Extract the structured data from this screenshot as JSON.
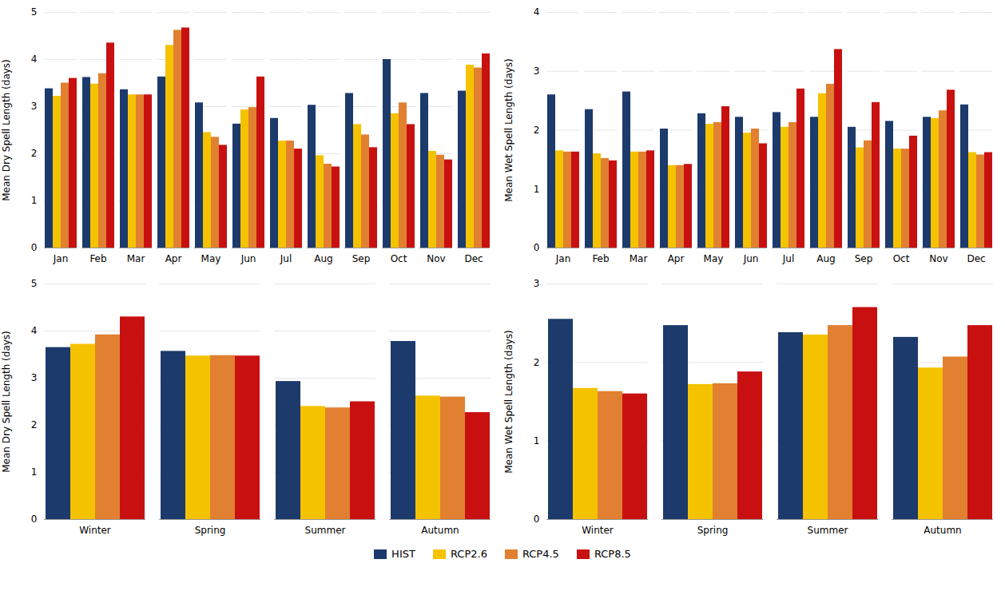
{
  "chart_data": [
    {
      "type": "bar",
      "ylabel": "Mean Dry Spell Length (days)",
      "categories": [
        "Jan",
        "Feb",
        "Mar",
        "Apr",
        "May",
        "Jun",
        "Jul",
        "Aug",
        "Sep",
        "Oct",
        "Nov",
        "Dec"
      ],
      "series": [
        {
          "name": "HIST",
          "color": "#1c3a6b",
          "values": [
            3.38,
            3.62,
            3.36,
            3.63,
            3.08,
            2.63,
            2.75,
            3.03,
            3.28,
            4.0,
            3.28,
            3.33
          ]
        },
        {
          "name": "RCP2.6",
          "color": "#f5c200",
          "values": [
            3.22,
            3.48,
            3.25,
            4.3,
            2.45,
            2.93,
            2.27,
            1.96,
            2.62,
            2.85,
            2.05,
            3.88
          ]
        },
        {
          "name": "RCP4.5",
          "color": "#e08030",
          "values": [
            3.5,
            3.7,
            3.25,
            4.62,
            2.35,
            2.98,
            2.27,
            1.78,
            2.4,
            3.08,
            1.97,
            3.82
          ]
        },
        {
          "name": "RCP8.5",
          "color": "#c81010",
          "values": [
            3.6,
            4.35,
            3.25,
            4.67,
            2.18,
            3.63,
            2.1,
            1.72,
            2.13,
            2.62,
            1.87,
            4.12
          ]
        }
      ],
      "ylim": [
        0,
        5
      ],
      "yticks": [
        0,
        1,
        2,
        3,
        4,
        5
      ],
      "grid": true,
      "legend": "bottom"
    },
    {
      "type": "bar",
      "ylabel": "Mean Wet Spell Length (days)",
      "categories": [
        "Jan",
        "Feb",
        "Mar",
        "Apr",
        "May",
        "Jun",
        "Jul",
        "Aug",
        "Sep",
        "Oct",
        "Nov",
        "Dec"
      ],
      "series": [
        {
          "name": "HIST",
          "color": "#1c3a6b",
          "values": [
            2.6,
            2.35,
            2.65,
            2.02,
            2.28,
            2.22,
            2.3,
            2.22,
            2.05,
            2.15,
            2.22,
            2.43
          ]
        },
        {
          "name": "RCP2.6",
          "color": "#f5c200",
          "values": [
            1.65,
            1.6,
            1.63,
            1.4,
            2.1,
            1.95,
            2.05,
            2.62,
            1.7,
            1.68,
            2.2,
            1.62
          ]
        },
        {
          "name": "RCP4.5",
          "color": "#e08030",
          "values": [
            1.63,
            1.52,
            1.63,
            1.4,
            2.13,
            2.02,
            2.13,
            2.78,
            1.82,
            1.68,
            2.33,
            1.58
          ]
        },
        {
          "name": "RCP8.5",
          "color": "#c81010",
          "values": [
            1.63,
            1.48,
            1.65,
            1.42,
            2.4,
            1.77,
            2.7,
            3.37,
            2.47,
            1.9,
            2.68,
            1.62
          ]
        }
      ],
      "ylim": [
        0,
        4
      ],
      "yticks": [
        0,
        1,
        2,
        3,
        4
      ],
      "grid": true,
      "legend": "bottom"
    },
    {
      "type": "bar",
      "ylabel": "Mean Dry Spell Length (days)",
      "categories": [
        "Winter",
        "Spring",
        "Summer",
        "Autumn"
      ],
      "series": [
        {
          "name": "HIST",
          "color": "#1c3a6b",
          "values": [
            3.65,
            3.57,
            2.93,
            3.78
          ]
        },
        {
          "name": "RCP2.6",
          "color": "#f5c200",
          "values": [
            3.72,
            3.47,
            2.4,
            2.62
          ]
        },
        {
          "name": "RCP4.5",
          "color": "#e08030",
          "values": [
            3.92,
            3.48,
            2.37,
            2.6
          ]
        },
        {
          "name": "RCP8.5",
          "color": "#c81010",
          "values": [
            4.3,
            3.47,
            2.5,
            2.27
          ]
        }
      ],
      "ylim": [
        0,
        5
      ],
      "yticks": [
        0,
        1,
        2,
        3,
        4,
        5
      ],
      "grid": true,
      "legend": "bottom"
    },
    {
      "type": "bar",
      "ylabel": "Mean Wet Spell Length (days)",
      "categories": [
        "Winter",
        "Spring",
        "Summer",
        "Autumn"
      ],
      "series": [
        {
          "name": "HIST",
          "color": "#1c3a6b",
          "values": [
            2.55,
            2.47,
            2.38,
            2.32
          ]
        },
        {
          "name": "RCP2.6",
          "color": "#f5c200",
          "values": [
            1.67,
            1.72,
            2.35,
            1.93
          ]
        },
        {
          "name": "RCP4.5",
          "color": "#e08030",
          "values": [
            1.63,
            1.73,
            2.47,
            2.07
          ]
        },
        {
          "name": "RCP8.5",
          "color": "#c81010",
          "values": [
            1.6,
            1.88,
            2.7,
            2.47
          ]
        }
      ],
      "ylim": [
        0,
        3
      ],
      "yticks": [
        0,
        1,
        2,
        3
      ],
      "grid": true,
      "legend": "bottom"
    }
  ]
}
